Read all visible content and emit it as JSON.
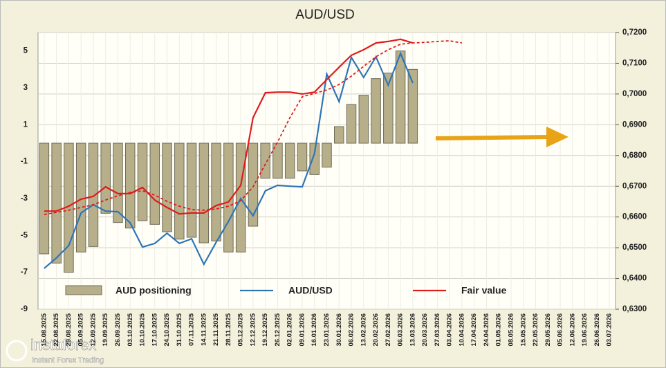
{
  "chart_data": {
    "type": "bar_line",
    "title": "AUD/USD",
    "categories": [
      "15.08.2025",
      "22.08.2025",
      "29.08.2025",
      "05.09.2025",
      "12.09.2025",
      "19.09.2025",
      "26.09.2025",
      "03.10.2025",
      "10.10.2025",
      "17.10.2025",
      "24.10.2025",
      "31.10.2025",
      "07.11.2025",
      "14.11.2025",
      "21.11.2025",
      "28.11.2025",
      "05.12.2025",
      "12.12.2025",
      "19.12.2025",
      "26.12.2025",
      "02.01.2026",
      "09.01.2026",
      "16.01.2026",
      "23.01.2026",
      "30.01.2026",
      "06.02.2026",
      "13.02.2026",
      "20.02.2026",
      "27.02.2026",
      "06.03.2026",
      "13.03.2026",
      "20.03.2026",
      "27.03.2026",
      "03.04.2026",
      "10.04.2026",
      "17.04.2026",
      "24.04.2026",
      "01.05.2026",
      "08.05.2026",
      "15.05.2026",
      "22.05.2026",
      "29.05.2026",
      "05.06.2026",
      "12.06.2026",
      "19.06.2026",
      "26.06.2026",
      "03.07.2026"
    ],
    "series": [
      {
        "name": "AUD positioning",
        "kind": "bar",
        "color": "#b7af8a",
        "values": [
          -6.0,
          -6.5,
          -7.0,
          -5.9,
          -5.6,
          -3.8,
          -4.3,
          -4.6,
          -4.2,
          -4.4,
          -4.8,
          -5.2,
          -5.1,
          -5.4,
          -5.3,
          -5.9,
          -5.9,
          -4.5,
          -1.9,
          -1.9,
          -1.9,
          -1.5,
          -1.7,
          -1.3,
          0.9,
          2.1,
          2.6,
          3.5,
          3.8,
          5.0,
          4.0,
          null,
          null,
          null,
          null,
          null,
          null,
          null,
          null,
          null,
          null,
          null,
          null,
          null,
          null,
          null,
          null
        ]
      },
      {
        "name": "AUD/USD",
        "kind": "line",
        "axis": "y2",
        "color": "#2e75b6",
        "values": [
          0.6433,
          0.6467,
          0.6507,
          0.6613,
          0.664,
          0.6619,
          0.6617,
          0.6581,
          0.6502,
          0.6514,
          0.6547,
          0.6514,
          0.6529,
          0.6446,
          0.6518,
          0.6586,
          0.666,
          0.6604,
          0.6685,
          0.6703,
          0.67,
          0.6698,
          0.6806,
          0.7065,
          0.6975,
          0.7119,
          0.7054,
          0.7121,
          0.7029,
          0.7132,
          0.7036,
          null,
          null,
          null,
          null,
          null,
          null,
          null,
          null,
          null,
          null,
          null,
          null,
          null,
          null,
          null,
          null
        ]
      },
      {
        "name": "Fair value",
        "kind": "line",
        "axis": "y2",
        "color": "#e01b1b",
        "values": [
          0.6619,
          0.6619,
          0.6635,
          0.6658,
          0.6667,
          0.6698,
          0.6676,
          0.6676,
          0.6696,
          0.6655,
          0.6631,
          0.661,
          0.6613,
          0.6613,
          0.6637,
          0.6649,
          0.6703,
          0.6923,
          0.7004,
          0.7006,
          0.7006,
          0.7,
          0.7006,
          0.7047,
          0.7087,
          0.7126,
          0.7144,
          0.7166,
          0.7171,
          0.7178,
          0.7166,
          null,
          null,
          null,
          null,
          null,
          null,
          null,
          null,
          null,
          null,
          null,
          null,
          null,
          null,
          null,
          null
        ]
      },
      {
        "kind": "line",
        "dashed": true,
        "axis": "y2",
        "color": "#e01b1b",
        "values": [
          0.6608,
          0.6615,
          0.6622,
          0.6631,
          0.664,
          0.6655,
          0.6669,
          0.668,
          0.6685,
          0.6671,
          0.6651,
          0.6635,
          0.6624,
          0.6622,
          0.6626,
          0.6635,
          0.6653,
          0.6698,
          0.6772,
          0.6844,
          0.6923,
          0.6991,
          0.7002,
          0.7013,
          0.7031,
          0.7058,
          0.709,
          0.7121,
          0.7144,
          0.7162,
          0.7166,
          0.7168,
          0.7171,
          0.7173,
          0.7166,
          null,
          null,
          null,
          null,
          null,
          null,
          null,
          null,
          null,
          null,
          null,
          null
        ]
      }
    ],
    "ylim": [
      -9,
      6
    ],
    "yticks": [
      -9,
      -7,
      -5,
      -3,
      -1,
      1,
      3,
      5
    ],
    "y2lim": [
      0.63,
      0.72
    ],
    "y2ticks": [
      {
        "value": 0.63,
        "label": "0,6300"
      },
      {
        "value": 0.64,
        "label": "0,6400"
      },
      {
        "value": 0.65,
        "label": "0,6500"
      },
      {
        "value": 0.66,
        "label": "0,6600"
      },
      {
        "value": 0.67,
        "label": "0,6700"
      },
      {
        "value": 0.68,
        "label": "0,6800"
      },
      {
        "value": 0.69,
        "label": "0,6900"
      },
      {
        "value": 0.7,
        "label": "0,7000"
      },
      {
        "value": 0.71,
        "label": "0,7100"
      },
      {
        "value": 0.72,
        "label": "0,7200"
      }
    ],
    "grid": true,
    "legend": "bottom"
  },
  "watermark": {
    "brand": "instaforex",
    "tagline": "Instant Forex Trading"
  }
}
